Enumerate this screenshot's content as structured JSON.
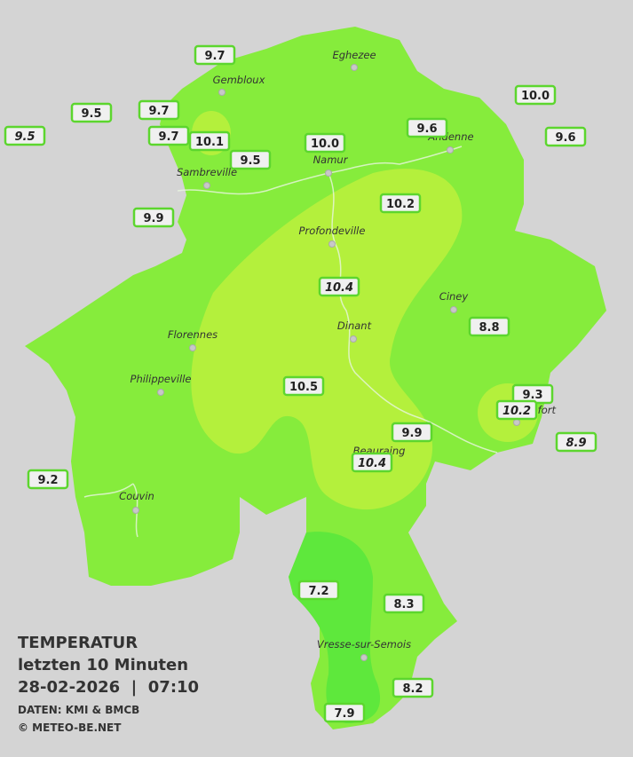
{
  "legend": {
    "title": "TEMPERATUR",
    "period": "letzten 10 Minuten",
    "datetime": "28-02-2026  |  07:10",
    "source": "DATEN: KMI & BMCB",
    "copyright": "© METEO-BE.NET"
  },
  "towns": [
    "Eghezee",
    "Gembloux",
    "Andenne",
    "Namur",
    "Sambreville",
    "Profondeville",
    "Ciney",
    "Dinant",
    "Florennes",
    "Philippeville",
    "Rochefort",
    "Beauraing",
    "Couvin",
    "Vresse-sur-Semois"
  ],
  "stations": [
    "9.7",
    "9.5",
    "9.7",
    "9.5",
    "9.7",
    "10.1",
    "9.5",
    "10.0",
    "9.6",
    "10.0",
    "9.6",
    "9.9",
    "10.2",
    "10.4",
    "8.8",
    "10.5",
    "9.3",
    "10.2",
    "8.9",
    "9.9",
    "10.4",
    "9.2",
    "7.2",
    "8.3",
    "8.2",
    "7.9"
  ]
}
